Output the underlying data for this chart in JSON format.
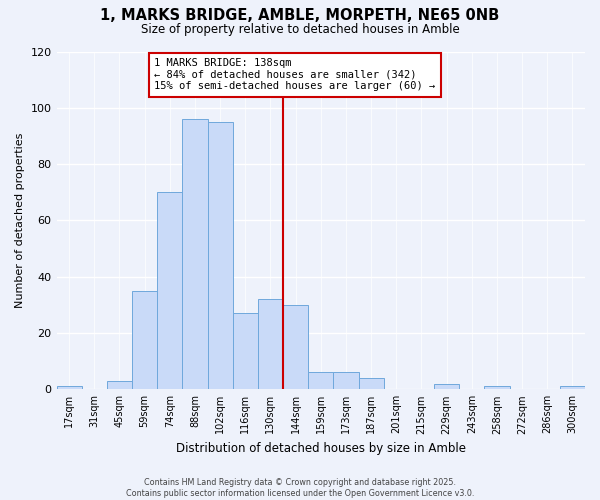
{
  "title": "1, MARKS BRIDGE, AMBLE, MORPETH, NE65 0NB",
  "subtitle": "Size of property relative to detached houses in Amble",
  "xlabel": "Distribution of detached houses by size in Amble",
  "ylabel": "Number of detached properties",
  "bar_labels": [
    "17sqm",
    "31sqm",
    "45sqm",
    "59sqm",
    "74sqm",
    "88sqm",
    "102sqm",
    "116sqm",
    "130sqm",
    "144sqm",
    "159sqm",
    "173sqm",
    "187sqm",
    "201sqm",
    "215sqm",
    "229sqm",
    "243sqm",
    "258sqm",
    "272sqm",
    "286sqm",
    "300sqm"
  ],
  "bar_values": [
    1,
    0,
    3,
    35,
    70,
    96,
    95,
    27,
    32,
    30,
    6,
    6,
    4,
    0,
    0,
    2,
    0,
    1,
    0,
    0,
    1
  ],
  "bar_color": "#c9daf8",
  "bar_edge_color": "#6fa8dc",
  "vline_x": 8.5,
  "vline_color": "#cc0000",
  "annotation_text": "1 MARKS BRIDGE: 138sqm\n← 84% of detached houses are smaller (342)\n15% of semi-detached houses are larger (60) →",
  "annotation_box_edge_color": "#cc0000",
  "ylim": [
    0,
    120
  ],
  "yticks": [
    0,
    20,
    40,
    60,
    80,
    100,
    120
  ],
  "background_color": "#eef2fb",
  "footer_line1": "Contains HM Land Registry data © Crown copyright and database right 2025.",
  "footer_line2": "Contains public sector information licensed under the Open Government Licence v3.0."
}
